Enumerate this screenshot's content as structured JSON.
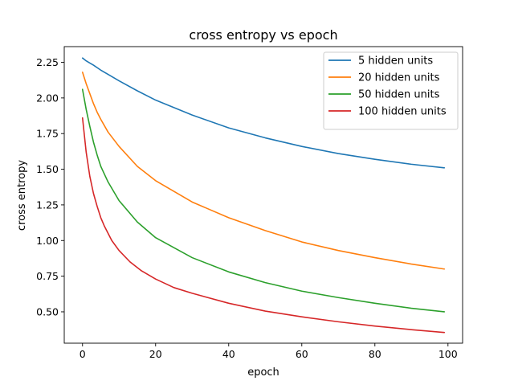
{
  "chart_data": {
    "type": "line",
    "title": "cross entropy vs epoch",
    "xlabel": "epoch",
    "ylabel": "cross entropy",
    "xlim": [
      -5,
      104
    ],
    "ylim": [
      0.28,
      2.36
    ],
    "xticks": [
      0,
      20,
      40,
      60,
      80,
      100
    ],
    "yticks": [
      0.5,
      0.75,
      1.0,
      1.25,
      1.5,
      1.75,
      2.0,
      2.25
    ],
    "xtick_labels": [
      "0",
      "20",
      "40",
      "60",
      "80",
      "100"
    ],
    "ytick_labels": [
      "0.50",
      "0.75",
      "1.00",
      "1.25",
      "1.50",
      "1.75",
      "2.00",
      "2.25"
    ],
    "grid": false,
    "legend_position": "top-right",
    "series": [
      {
        "name": "5 hidden units",
        "color": "#1f77b4",
        "x": [
          0,
          1,
          2,
          3,
          5,
          7,
          10,
          15,
          20,
          30,
          40,
          50,
          60,
          70,
          80,
          90,
          99
        ],
        "values": [
          2.28,
          2.26,
          2.245,
          2.23,
          2.195,
          2.165,
          2.12,
          2.05,
          1.985,
          1.88,
          1.79,
          1.72,
          1.66,
          1.61,
          1.57,
          1.535,
          1.51
        ]
      },
      {
        "name": "20 hidden units",
        "color": "#ff7f0e",
        "x": [
          0,
          1,
          2,
          3,
          4,
          5,
          7,
          10,
          15,
          20,
          30,
          40,
          50,
          60,
          70,
          80,
          90,
          99
        ],
        "values": [
          2.18,
          2.1,
          2.03,
          1.96,
          1.9,
          1.85,
          1.76,
          1.66,
          1.52,
          1.42,
          1.27,
          1.16,
          1.07,
          0.99,
          0.93,
          0.88,
          0.835,
          0.8
        ]
      },
      {
        "name": "50 hidden units",
        "color": "#2ca02c",
        "x": [
          0,
          1,
          2,
          3,
          4,
          5,
          7,
          10,
          15,
          20,
          30,
          40,
          50,
          60,
          70,
          80,
          90,
          99
        ],
        "values": [
          2.06,
          1.92,
          1.8,
          1.69,
          1.6,
          1.52,
          1.41,
          1.28,
          1.13,
          1.02,
          0.88,
          0.78,
          0.705,
          0.645,
          0.6,
          0.56,
          0.525,
          0.5
        ]
      },
      {
        "name": "100 hidden units",
        "color": "#d62728",
        "x": [
          0,
          1,
          2,
          3,
          4,
          5,
          6,
          8,
          10,
          13,
          16,
          20,
          25,
          30,
          40,
          50,
          60,
          70,
          80,
          90,
          99
        ],
        "values": [
          1.86,
          1.62,
          1.45,
          1.33,
          1.24,
          1.16,
          1.1,
          1.0,
          0.93,
          0.85,
          0.79,
          0.73,
          0.67,
          0.63,
          0.56,
          0.505,
          0.465,
          0.43,
          0.4,
          0.375,
          0.355
        ]
      }
    ]
  }
}
